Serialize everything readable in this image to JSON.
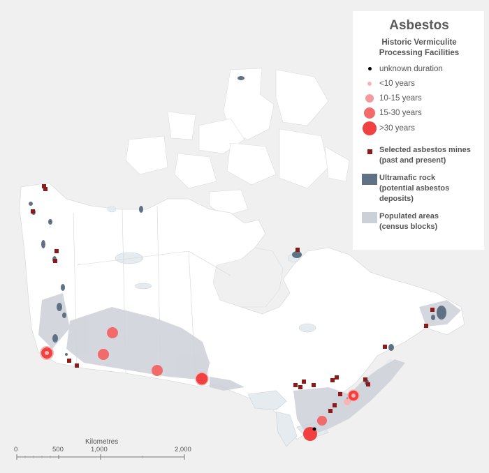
{
  "legend": {
    "title": "Asbestos",
    "subtitle_line1": "Historic Vermiculite",
    "subtitle_line2": "Processing Facilities",
    "durations": [
      {
        "label": "unknown duration",
        "icon": "black-dot-icon"
      },
      {
        "label": "<10 years",
        "icon": "small-pink-circle-icon"
      },
      {
        "label": "10-15 years",
        "icon": "medium-pink-circle-icon"
      },
      {
        "label": "15-30 years",
        "icon": "large-red-circle-icon"
      },
      {
        "label": ">30 years",
        "icon": "xlarge-red-circle-icon"
      }
    ],
    "mines_line1": "Selected asbestos mines",
    "mines_line2": "(past and present)",
    "ultramafic_line1": "Ultramafic rock",
    "ultramafic_line2": "(potential asbestos",
    "ultramafic_line3": "deposits)",
    "populated_line1": "Populated areas",
    "populated_line2": "(census blocks)"
  },
  "scale_bar": {
    "title": "Kilometres",
    "ticks": [
      "0",
      "500",
      "1,000",
      "2,000"
    ]
  },
  "colors": {
    "land": "#ffffff",
    "water": "#e6ebef",
    "populated": "#ccd1d8",
    "ultramafic": "#5f7184",
    "mine": "#8b1a1a",
    "facility_small": "#f7b6b6",
    "facility_large": "#f04040",
    "background": "#f0f0f0"
  }
}
